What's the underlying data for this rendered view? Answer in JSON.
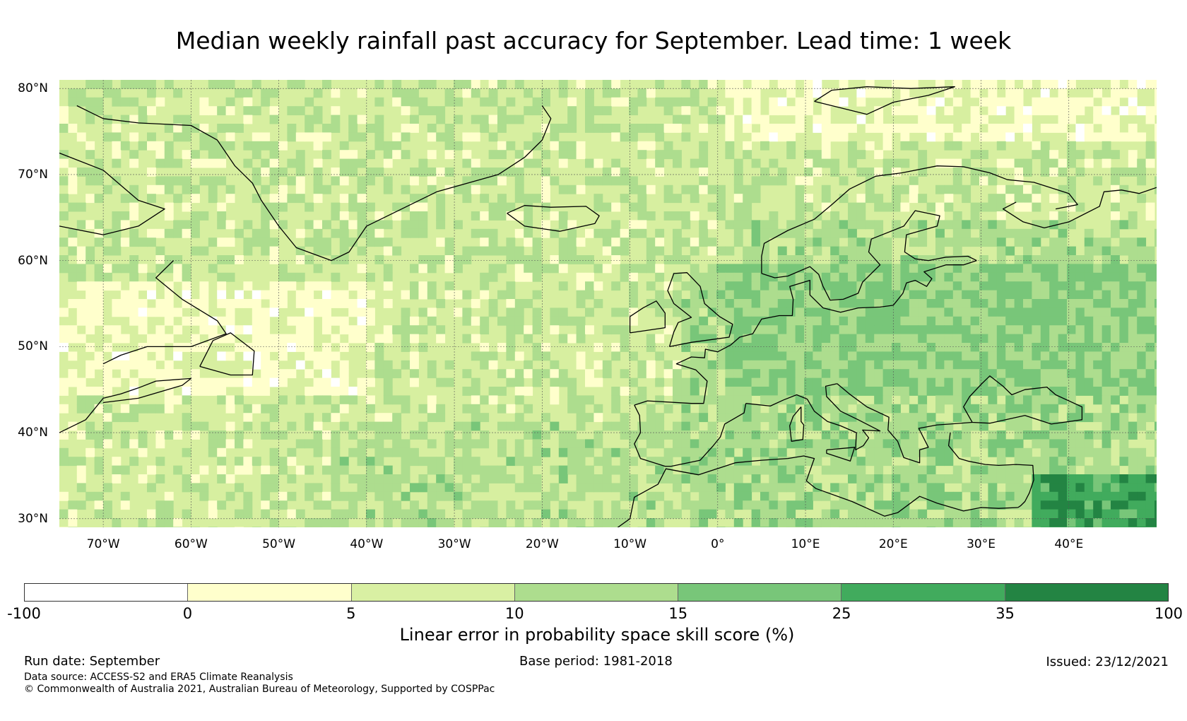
{
  "title": "Median weekly rainfall past accuracy for September. Lead time: 1 week",
  "map": {
    "region": "North Atlantic and Europe",
    "lon_range": [
      -75,
      50
    ],
    "lat_range": [
      29,
      81
    ],
    "latitude_labels": [
      {
        "value": 80,
        "label": "80°N"
      },
      {
        "value": 70,
        "label": "70°N"
      },
      {
        "value": 60,
        "label": "60°N"
      },
      {
        "value": 50,
        "label": "50°N"
      },
      {
        "value": 40,
        "label": "40°N"
      },
      {
        "value": 30,
        "label": "30°N"
      }
    ],
    "longitude_labels": [
      {
        "value": -70,
        "label": "70°W"
      },
      {
        "value": -60,
        "label": "60°W"
      },
      {
        "value": -50,
        "label": "50°W"
      },
      {
        "value": -40,
        "label": "40°W"
      },
      {
        "value": -30,
        "label": "30°W"
      },
      {
        "value": -20,
        "label": "20°W"
      },
      {
        "value": -10,
        "label": "10°W"
      },
      {
        "value": 0,
        "label": "0°"
      },
      {
        "value": 10,
        "label": "10°E"
      },
      {
        "value": 20,
        "label": "20°E"
      },
      {
        "value": 30,
        "label": "30°E"
      },
      {
        "value": 40,
        "label": "40°E"
      }
    ],
    "ocean_color": "#d7efa0",
    "coastline_color": "#000000"
  },
  "colorbar": {
    "title": "Linear error in probability space skill score (%)",
    "ticks": [
      "-100",
      "0",
      "5",
      "10",
      "15",
      "25",
      "35",
      "100"
    ],
    "colors": [
      "#ffffff",
      "#ffffcc",
      "#d9f0a3",
      "#addd8e",
      "#78c679",
      "#41ab5d",
      "#238443"
    ]
  },
  "footer": {
    "run_date": "Run date: September",
    "base_period": "Base period: 1981-2018",
    "issued": "Issued: 23/12/2021",
    "data_source": "Data source: ACCESS-S2 and ERA5 Climate Reanalysis",
    "copyright": "© Commonwealth of Australia 2021, Australian Bureau of Meteorology, Supported by COSPPac"
  }
}
